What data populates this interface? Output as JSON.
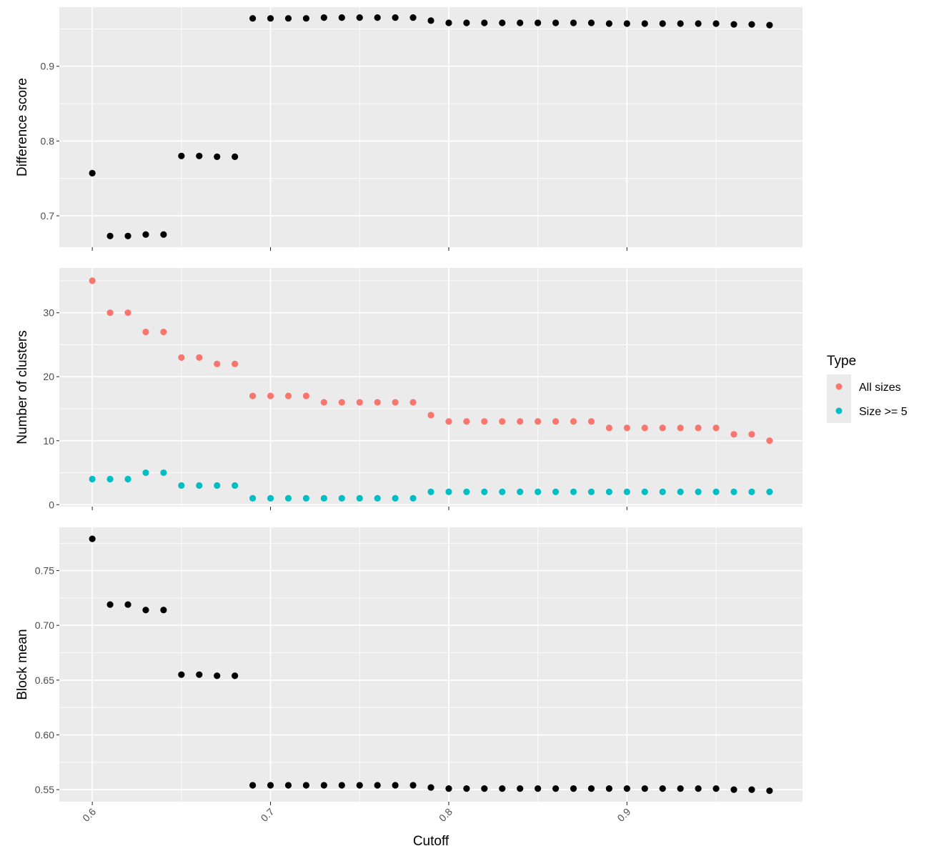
{
  "chart_data": {
    "type": "scatter",
    "xlabel": "Cutoff",
    "x": [
      0.6,
      0.61,
      0.62,
      0.63,
      0.64,
      0.65,
      0.66,
      0.67,
      0.68,
      0.69,
      0.7,
      0.71,
      0.72,
      0.73,
      0.74,
      0.75,
      0.76,
      0.77,
      0.78,
      0.79,
      0.8,
      0.81,
      0.82,
      0.83,
      0.84,
      0.85,
      0.86,
      0.87,
      0.88,
      0.89,
      0.9,
      0.91,
      0.92,
      0.93,
      0.94,
      0.95,
      0.96,
      0.97,
      0.98
    ],
    "xticks": [
      "0.6",
      "0.7",
      "0.8",
      "0.9"
    ],
    "xlim": [
      0.5815,
      0.9985
    ],
    "grid": true,
    "legend": {
      "title": "Type",
      "placement": "right",
      "entries": [
        {
          "name": "All sizes",
          "color": "#F8766D"
        },
        {
          "name": "Size >= 5",
          "color": "#00BFC4"
        }
      ]
    },
    "panels": [
      {
        "id": "difference",
        "ylabel": "Difference score",
        "ylim": [
          0.658,
          0.979
        ],
        "yticks": [
          "0.7",
          "0.8",
          "0.9"
        ],
        "series": [
          {
            "color": "#000000",
            "values": [
              0.757,
              0.673,
              0.673,
              0.675,
              0.675,
              0.78,
              0.78,
              0.779,
              0.779,
              0.964,
              0.964,
              0.964,
              0.964,
              0.965,
              0.965,
              0.965,
              0.965,
              0.965,
              0.965,
              0.961,
              0.958,
              0.958,
              0.958,
              0.958,
              0.958,
              0.958,
              0.958,
              0.958,
              0.958,
              0.957,
              0.957,
              0.957,
              0.957,
              0.957,
              0.957,
              0.957,
              0.956,
              0.956,
              0.955
            ]
          }
        ]
      },
      {
        "id": "clusters",
        "ylabel": "Number of clusters",
        "ylim": [
          -0.3,
          37.0
        ],
        "yticks": [
          "0",
          "10",
          "20",
          "30"
        ],
        "series": [
          {
            "name": "All sizes",
            "color": "#F8766D",
            "values": [
              35,
              30,
              30,
              27,
              27,
              23,
              23,
              22,
              22,
              17,
              17,
              17,
              17,
              16,
              16,
              16,
              16,
              16,
              16,
              14,
              13,
              13,
              13,
              13,
              13,
              13,
              13,
              13,
              13,
              12,
              12,
              12,
              12,
              12,
              12,
              12,
              11,
              11,
              10
            ]
          },
          {
            "name": "Size >= 5",
            "color": "#00BFC4",
            "values": [
              4,
              4,
              4,
              5,
              5,
              3,
              3,
              3,
              3,
              1,
              1,
              1,
              1,
              1,
              1,
              1,
              1,
              1,
              1,
              2,
              2,
              2,
              2,
              2,
              2,
              2,
              2,
              2,
              2,
              2,
              2,
              2,
              2,
              2,
              2,
              2,
              2,
              2,
              2
            ]
          }
        ]
      },
      {
        "id": "block-mean",
        "ylabel": "Block mean",
        "ylim": [
          0.539,
          0.7895
        ],
        "yticks": [
          "0.55",
          "0.60",
          "0.65",
          "0.70",
          "0.75"
        ],
        "series": [
          {
            "color": "#000000",
            "values": [
              0.779,
              0.719,
              0.719,
              0.714,
              0.714,
              0.655,
              0.655,
              0.654,
              0.654,
              0.554,
              0.554,
              0.554,
              0.554,
              0.554,
              0.554,
              0.554,
              0.554,
              0.554,
              0.554,
              0.552,
              0.551,
              0.551,
              0.551,
              0.551,
              0.551,
              0.551,
              0.551,
              0.551,
              0.551,
              0.551,
              0.551,
              0.551,
              0.551,
              0.551,
              0.551,
              0.551,
              0.55,
              0.55,
              0.549
            ]
          }
        ]
      }
    ]
  }
}
